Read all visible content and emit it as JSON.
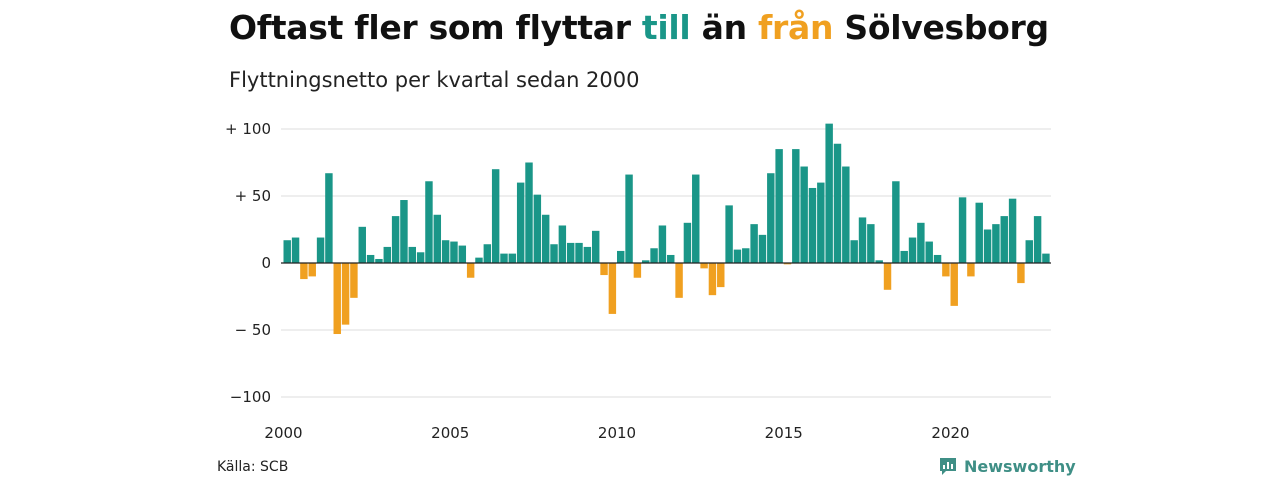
{
  "header": {
    "title_parts": [
      "Oftast fler som flyttar ",
      "till",
      " än ",
      "från",
      " Sölvesborg"
    ],
    "subtitle": "Flyttningsnetto per kvartal sedan 2000"
  },
  "footer": {
    "source": "Källa: SCB",
    "brand": "Newsworthy",
    "brand_icon": "newsworthy-logo-icon"
  },
  "colors": {
    "positive": "#1a9688",
    "negative": "#f0a020",
    "grid": "#dddddd",
    "axis": "#222222"
  },
  "chart_data": {
    "type": "bar",
    "title": "Oftast fler som flyttar till än från Sölvesborg",
    "subtitle": "Flyttningsnetto per kvartal sedan 2000",
    "x_start": "2000-Q1",
    "x_labels": [
      "2000",
      "2005",
      "2010",
      "2015",
      "2020"
    ],
    "y_ticks": [
      {
        "value": 100,
        "label": "+ 100"
      },
      {
        "value": 50,
        "label": "+  50"
      },
      {
        "value": 0,
        "label": "0"
      },
      {
        "value": -50,
        "label": "− 50"
      },
      {
        "value": -100,
        "label": "−100"
      }
    ],
    "ylim": [
      -100,
      100
    ],
    "grid": true,
    "values": [
      17,
      19,
      -12,
      -10,
      19,
      67,
      -53,
      -46,
      -26,
      27,
      6,
      3,
      12,
      35,
      47,
      12,
      8,
      61,
      36,
      17,
      16,
      13,
      -11,
      4,
      14,
      70,
      7,
      7,
      60,
      75,
      51,
      36,
      14,
      28,
      15,
      15,
      12,
      24,
      -9,
      -38,
      9,
      66,
      -11,
      2,
      11,
      28,
      6,
      -26,
      30,
      66,
      -4,
      -24,
      -18,
      43,
      10,
      11,
      29,
      21,
      67,
      85,
      -1,
      85,
      72,
      56,
      60,
      104,
      89,
      72,
      17,
      34,
      29,
      2,
      -20,
      61,
      9,
      19,
      30,
      16,
      6,
      -10,
      -32,
      49,
      -10,
      45,
      25,
      29,
      35,
      48,
      -15,
      17,
      35,
      7
    ]
  }
}
